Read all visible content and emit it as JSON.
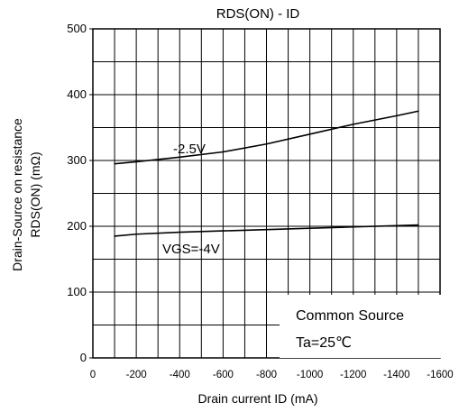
{
  "chart_data": {
    "type": "line",
    "title": "RDS(ON) - ID",
    "xlabel": "Drain current  ID (mA)",
    "ylabel_line1": "Drain-Source on resistance",
    "ylabel_line2": "RDS(ON) (mΩ)",
    "xlim": [
      0,
      -1600
    ],
    "ylim": [
      0,
      500
    ],
    "x_ticks": [
      0,
      -200,
      -400,
      -600,
      -800,
      -1000,
      -1200,
      -1400,
      -1600
    ],
    "x_tick_labels": [
      "0",
      "-200",
      "-400",
      "-600",
      "-800",
      "-1000",
      "-1200",
      "-1400",
      "-1600"
    ],
    "y_ticks": [
      0,
      100,
      200,
      300,
      400,
      500
    ],
    "y_tick_labels": [
      "0",
      "100",
      "200",
      "300",
      "400",
      "500"
    ],
    "grid": true,
    "series": [
      {
        "name": "-2.5V",
        "color": "#000000",
        "x": [
          -100,
          -200,
          -400,
          -600,
          -800,
          -1000,
          -1200,
          -1400,
          -1500
        ],
        "y": [
          295,
          298,
          305,
          313,
          325,
          340,
          355,
          368,
          375
        ]
      },
      {
        "name": "VGS=-4V",
        "color": "#000000",
        "x": [
          -100,
          -200,
          -400,
          -600,
          -800,
          -1000,
          -1200,
          -1400,
          -1500
        ],
        "y": [
          185,
          188,
          191,
          193,
          195,
          197,
          199,
          201,
          202
        ]
      }
    ],
    "annotations": [
      {
        "text": "-2.5V"
      },
      {
        "text": "VGS=-4V"
      }
    ],
    "legend_box": {
      "line1": "Common Source",
      "line2": "Ta=25℃",
      "placement": "bottom-right"
    }
  }
}
